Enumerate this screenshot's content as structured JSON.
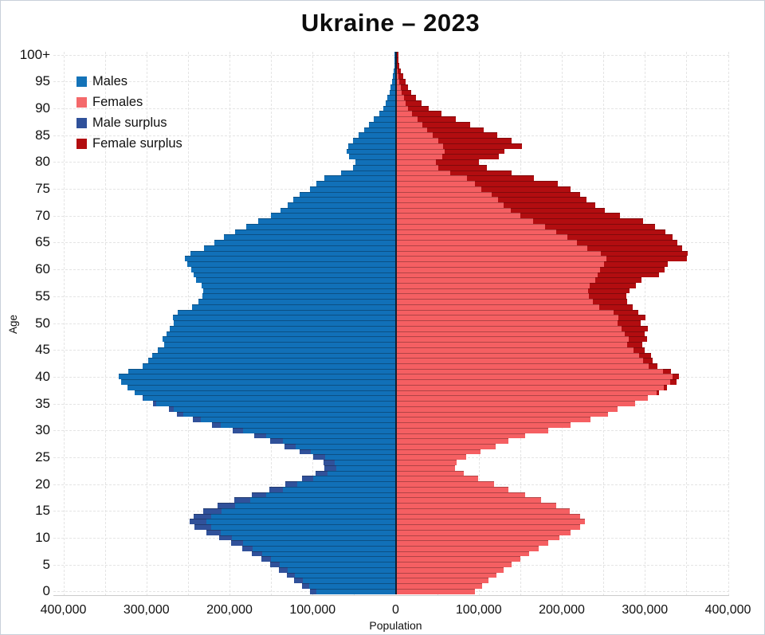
{
  "title": "Ukraine – 2023",
  "axes": {
    "x_label": "Population",
    "y_label": "Age",
    "x_ticks": [
      "400,000",
      "300,000",
      "200,000",
      "100,000",
      "0",
      "100,000",
      "200,000",
      "300,000",
      "400,000"
    ],
    "y_ticks": [
      "0",
      "5",
      "10",
      "15",
      "20",
      "25",
      "30",
      "35",
      "40",
      "45",
      "50",
      "55",
      "60",
      "65",
      "70",
      "75",
      "80",
      "85",
      "90",
      "95",
      "100+"
    ],
    "x_max": 400000,
    "x_grid_step": 50000,
    "y_grid_step": 5
  },
  "legend": [
    {
      "label": "Males",
      "color": "#1473b8"
    },
    {
      "label": "Females",
      "color": "#f4696b"
    },
    {
      "label": "Male surplus",
      "color": "#30519a"
    },
    {
      "label": "Female surplus",
      "color": "#b20d10"
    }
  ],
  "colors": {
    "male": "#1170b8",
    "female": "#f55f62",
    "male_surplus": "#30519a",
    "female_surplus": "#b20d10",
    "grid": "#e4e4e4",
    "center_line": "#0e2236"
  },
  "chart_data": {
    "type": "bar",
    "subtype": "population-pyramid",
    "title": "Ukraine – 2023",
    "xlabel": "Population",
    "ylabel": "Age",
    "x_range_each_side": [
      0,
      400000
    ],
    "ages": "0-100 single-year bins, 100 means 100+",
    "series": [
      {
        "name": "male",
        "values": [
          103000,
          113000,
          122000,
          131000,
          141000,
          151000,
          162000,
          173000,
          185000,
          198000,
          212000,
          228000,
          242000,
          248000,
          243000,
          232000,
          214000,
          194000,
          173000,
          152000,
          133000,
          113000,
          96000,
          86000,
          87000,
          99000,
          116000,
          134000,
          151000,
          170000,
          196000,
          221000,
          244000,
          263000,
          273000,
          292000,
          305000,
          314000,
          323000,
          330000,
          333000,
          322000,
          305000,
          298000,
          293000,
          286000,
          279000,
          281000,
          276000,
          272000,
          267000,
          268000,
          262000,
          245000,
          237000,
          233000,
          232000,
          234000,
          240000,
          243000,
          246000,
          251000,
          254000,
          247000,
          231000,
          218000,
          207000,
          193000,
          180000,
          165000,
          150000,
          139000,
          130000,
          123000,
          116000,
          103000,
          95000,
          86000,
          66000,
          51000,
          48000,
          56000,
          59000,
          57000,
          51000,
          45000,
          38000,
          32000,
          26000,
          20000,
          15000,
          12000,
          9600,
          7600,
          6000,
          4700,
          3500,
          2600,
          1900,
          1400,
          1600
        ]
      },
      {
        "name": "female",
        "values": [
          95000,
          104000,
          112000,
          121000,
          130000,
          140000,
          150000,
          161000,
          172000,
          184000,
          197000,
          211000,
          222000,
          228000,
          222000,
          210000,
          193000,
          175000,
          156000,
          136000,
          118000,
          99000,
          82000,
          71000,
          73000,
          85000,
          102000,
          120000,
          136000,
          156000,
          184000,
          211000,
          235000,
          256000,
          267000,
          288000,
          304000,
          317000,
          327000,
          338000,
          341000,
          331000,
          315000,
          309000,
          307000,
          300000,
          297000,
          303000,
          300000,
          304000,
          295000,
          301000,
          292000,
          285000,
          279000,
          278000,
          282000,
          289000,
          296000,
          317000,
          324000,
          328000,
          351000,
          352000,
          345000,
          339000,
          333000,
          325000,
          312000,
          298000,
          270000,
          252000,
          240000,
          230000,
          222000,
          211000,
          195000,
          166000,
          140000,
          110000,
          100000,
          124000,
          131000,
          152000,
          140000,
          122000,
          106000,
          90000,
          72000,
          55000,
          40000,
          31000,
          24000,
          19000,
          15000,
          12000,
          9000,
          6600,
          4700,
          3300,
          3100
        ]
      }
    ]
  }
}
